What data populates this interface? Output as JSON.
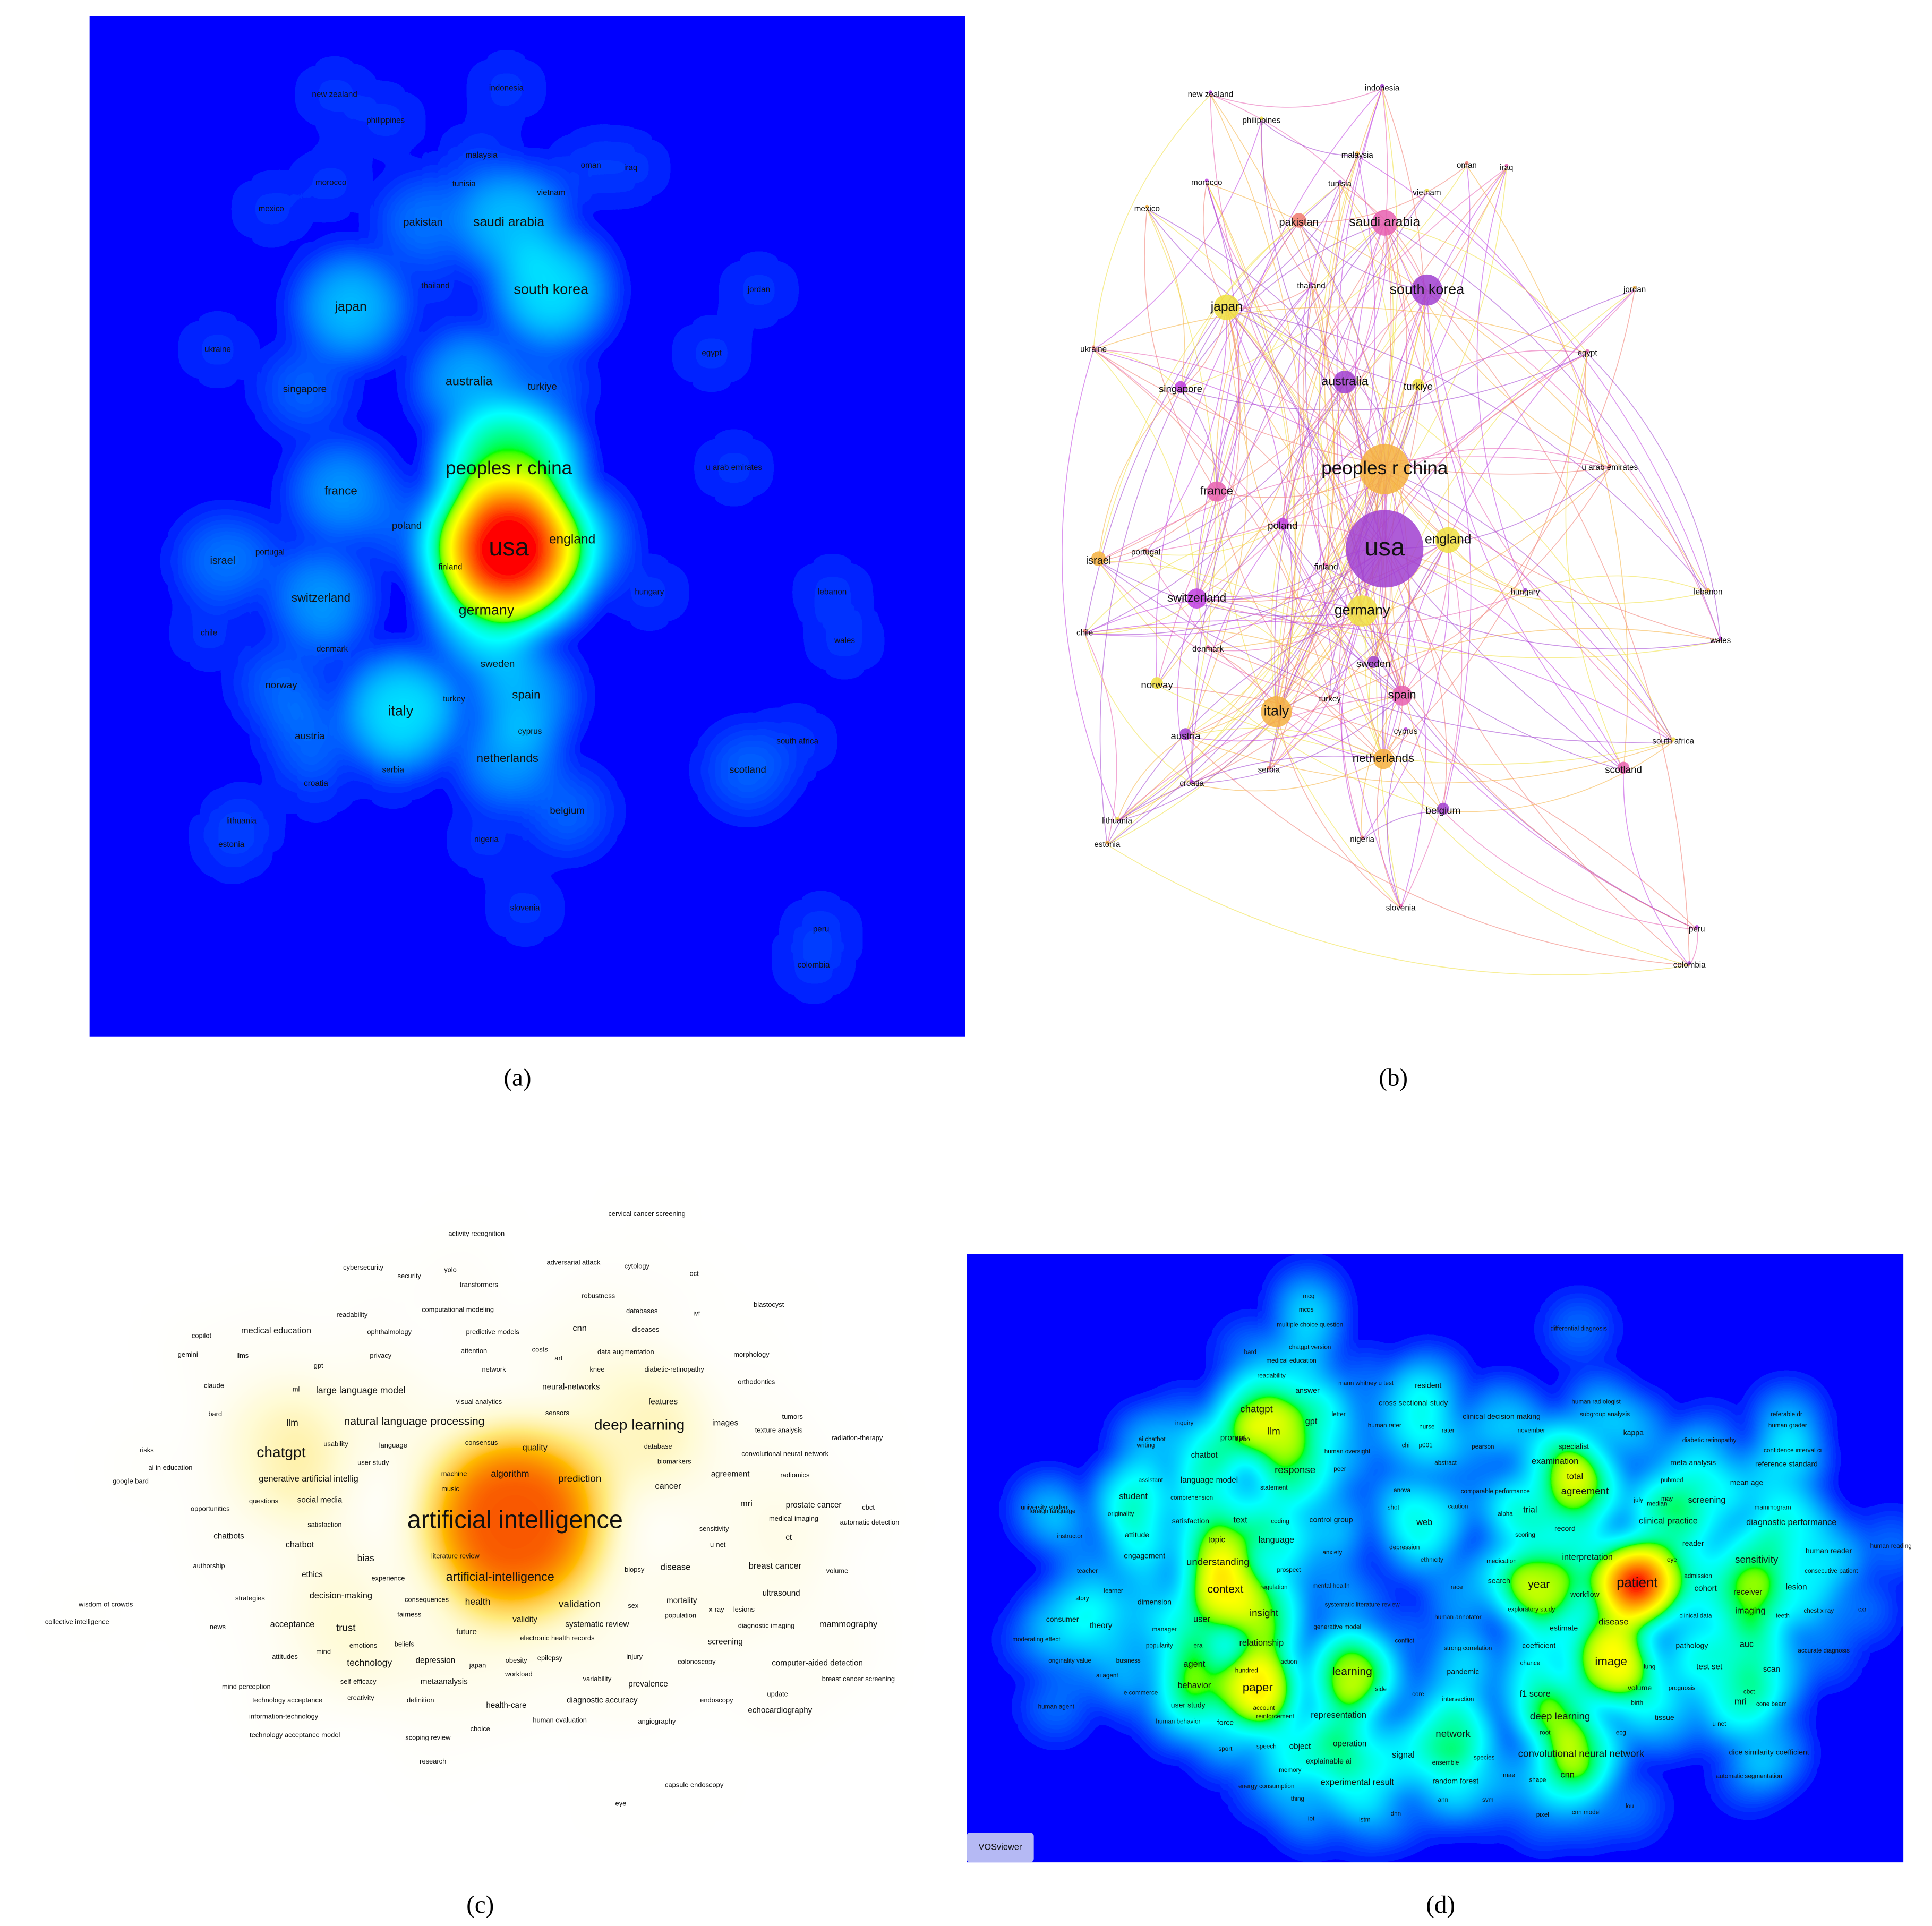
{
  "panels": [
    {
      "caption": "(a)",
      "labels": [
        "new zealand",
        "indonesia",
        "philippines",
        "malaysia",
        "oman",
        "iraq",
        "morocco",
        "tunisia",
        "vietnam",
        "mexico",
        "pakistan",
        "saudi arabia",
        "thailand",
        "south korea",
        "japan",
        "jordan",
        "ukraine",
        "egypt",
        "singapore",
        "australia",
        "turkiye",
        "peoples r china",
        "u arab emirates",
        "france",
        "poland",
        "usa",
        "england",
        "israel",
        "portugal",
        "finland",
        "switzerland",
        "hungary",
        "germany",
        "lebanon",
        "chile",
        "denmark",
        "wales",
        "sweden",
        "norway",
        "italy",
        "turkey",
        "spain",
        "cyprus",
        "austria",
        "south africa",
        "netherlands",
        "serbia",
        "scotland",
        "croatia",
        "belgium",
        "lithuania",
        "estonia",
        "nigeria",
        "slovenia",
        "peru",
        "colombia"
      ]
    },
    {
      "caption": "(b)",
      "labels": [
        "new zealand",
        "indonesia",
        "philippines",
        "malaysia",
        "oman",
        "iraq",
        "morocco",
        "tunisia",
        "vietnam",
        "mexico",
        "pakistan",
        "saudi arabia",
        "thailand",
        "south korea",
        "japan",
        "jordan",
        "ukraine",
        "egypt",
        "singapore",
        "australia",
        "turkiye",
        "peoples r china",
        "u arab emirates",
        "france",
        "poland",
        "usa",
        "england",
        "israel",
        "portugal",
        "finland",
        "switzerland",
        "hungary",
        "germany",
        "lebanon",
        "chile",
        "denmark",
        "wales",
        "sweden",
        "norway",
        "italy",
        "turkey",
        "spain",
        "cyprus",
        "austria",
        "south africa",
        "netherlands",
        "serbia",
        "scotland",
        "croatia",
        "belgium",
        "lithuania",
        "estonia",
        "nigeria",
        "slovenia",
        "peru",
        "colombia"
      ]
    },
    {
      "caption": "(c)",
      "labels": [
        "cervical cancer screening",
        "activity recognition",
        "cybersecurity",
        "yolo",
        "adversarial attack",
        "cytology",
        "security",
        "oct",
        "transformers",
        "robustness",
        "blastocyst",
        "readability",
        "computational modeling",
        "databases",
        "ivf",
        "copilot",
        "medical education",
        "ophthalmology",
        "predictive models",
        "cnn",
        "diseases",
        "gemini",
        "llms",
        "gpt",
        "privacy",
        "attention",
        "costs",
        "art",
        "data augmentation",
        "morphology",
        "network",
        "knee",
        "diabetic-retinopathy",
        "claude",
        "ml",
        "large language model",
        "neural-networks",
        "orthodontics",
        "visual analytics",
        "features",
        "bard",
        "sensors",
        "tumors",
        "llm",
        "natural language processing",
        "consensus",
        "deep learning",
        "images",
        "texture analysis",
        "radiation-therapy",
        "risks",
        "usability",
        "language",
        "database",
        "quality",
        "convolutional neural-network",
        "ai in education",
        "chatgpt",
        "user study",
        "biomarkers",
        "agreement",
        "radiomics",
        "google bard",
        "generative artificial intellig",
        "machine",
        "algorithm",
        "prediction",
        "music",
        "cancer",
        "opportunities",
        "questions",
        "social media",
        "mri",
        "prostate cancer",
        "cbct",
        "artificial intelligence",
        "medical imaging",
        "automatic detection",
        "satisfaction",
        "sensitivity",
        "chatbots",
        "chatbot",
        "ct",
        "u-net",
        "literature review",
        "bias",
        "artificial-intelligence",
        "disease",
        "breast cancer",
        "authorship",
        "ethics",
        "biopsy",
        "volume",
        "experience",
        "strategies",
        "decision-making",
        "consequences",
        "health",
        "validation",
        "mortality",
        "ultrasound",
        "wisdom of crowds",
        "x-ray",
        "fairness",
        "sex",
        "population",
        "lesions",
        "collective intelligence",
        "news",
        "acceptance",
        "trust",
        "validity",
        "systematic review",
        "diagnostic imaging",
        "mammography",
        "future",
        "emotions",
        "beliefs",
        "electronic health records",
        "screening",
        "mind",
        "technology",
        "depression",
        "japan",
        "epilepsy",
        "obesity",
        "injury",
        "colonoscopy",
        "computer-aided detection",
        "attitudes",
        "workload",
        "mind perception",
        "self-efficacy",
        "metaanalysis",
        "variability",
        "prevalence",
        "breast cancer screening",
        "technology acceptance",
        "creativity",
        "definition",
        "health-care",
        "diagnostic accuracy",
        "endoscopy",
        "update",
        "echocardiography",
        "information-technology",
        "human evaluation",
        "angiography",
        "choice",
        "technology acceptance model",
        "scoping review",
        "research",
        "capsule endoscopy",
        "eye"
      ]
    },
    {
      "caption": "(d)",
      "watermark": "VOSviewer",
      "labels": [
        "mcq",
        "mcqs",
        "multiple choice question",
        "differential diagnosis",
        "bard",
        "chatgpt version",
        "medical education",
        "readability",
        "answer",
        "mann whitney u test",
        "resident",
        "human radiologist",
        "letter",
        "cross sectional study",
        "subgroup analysis",
        "referable dr",
        "human grader",
        "inquiry",
        "chatgpt",
        "gpt",
        "human rater",
        "clinical decision making",
        "nurse",
        "rater",
        "november",
        "kappa",
        "ai chatbot",
        "turbo",
        "llm",
        "prompt",
        "diabetic retinopathy",
        "writing",
        "human oversight",
        "chi",
        "p001",
        "pearson",
        "specialist",
        "confidence interval ci",
        "abstract",
        "examination",
        "meta analysis",
        "chatbot",
        "peer",
        "reference standard",
        "assistant",
        "language model",
        "statement",
        "response",
        "total",
        "pubmed",
        "mean age",
        "foreign language",
        "anova",
        "comparable performance",
        "agreement",
        "student",
        "comprehension",
        "july",
        "may",
        "screening",
        "mammogram",
        "university student",
        "originality",
        "shot",
        "caution",
        "alpha",
        "trial",
        "median",
        "satisfaction",
        "text",
        "coding",
        "control group",
        "web",
        "clinical practice",
        "diagnostic performance",
        "scoring",
        "record",
        "instructor",
        "attitude",
        "language",
        "topic",
        "depression",
        "ethnicity",
        "reader",
        "human reading",
        "engagement",
        "understanding",
        "prospect",
        "anxiety",
        "medication",
        "interpretation",
        "eye",
        "sensitivity",
        "human reader",
        "teacher",
        "dimension",
        "regulation",
        "mental health",
        "search",
        "year",
        "workflow",
        "patient",
        "admission",
        "cohort",
        "consecutive patient",
        "lesion",
        "learner",
        "context",
        "race",
        "exploratory study",
        "receiver",
        "story",
        "systematic literature review",
        "imaging",
        "chest x ray",
        "cxr",
        "teeth",
        "consumer",
        "theory",
        "insight",
        "human annotator",
        "estimate",
        "disease",
        "clinical data",
        "user",
        "generative model",
        "conflict",
        "manager",
        "popularity",
        "era",
        "relationship",
        "auc",
        "moderating effect",
        "pathology",
        "accurate diagnosis",
        "strong correlation",
        "coefficient",
        "originality value",
        "business",
        "agent",
        "action",
        "chance",
        "image",
        "lung",
        "test set",
        "scan",
        "ai agent",
        "pandemic",
        "paper",
        "learning",
        "behavior",
        "hundred",
        "e commerce",
        "side",
        "core",
        "intersection",
        "f1 score",
        "volume",
        "prognosis",
        "cbct",
        "human agent",
        "user study",
        "account",
        "birth",
        "mri",
        "cone beam",
        "representation",
        "root",
        "ecg",
        "tissue",
        "deep learning",
        "human behavior",
        "force",
        "reinforcement",
        "u net",
        "network",
        "operation",
        "sport",
        "speech",
        "object",
        "signal",
        "species",
        "convolutional neural network",
        "dice similarity coefficient",
        "explainable ai",
        "ensemble",
        "memory",
        "mae",
        "cnn",
        "automatic segmentation",
        "experimental result",
        "random forest",
        "shape",
        "energy consumption",
        "thing",
        "ann",
        "svm",
        "lou",
        "iot",
        "lstm",
        "dnn",
        "pixel",
        "cnn model"
      ]
    }
  ]
}
